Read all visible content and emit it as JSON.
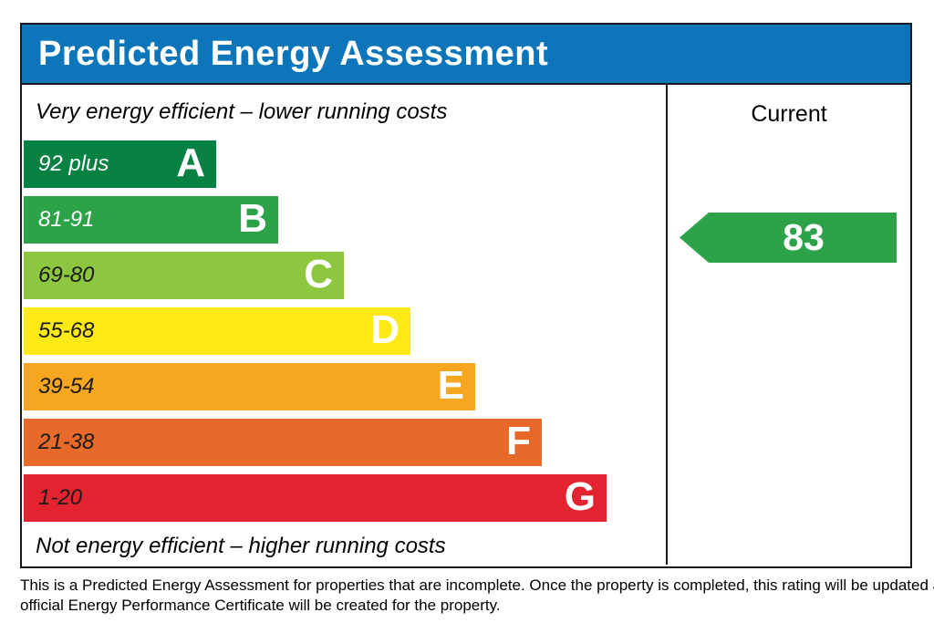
{
  "title": "Predicted Energy Assessment",
  "colors": {
    "header_blue": "#0d76ba",
    "border_black": "#1a1a1a",
    "arrow_green": "#2ca349"
  },
  "scale": {
    "top_note": "Very energy efficient – lower running costs",
    "bottom_note": "Not energy efficient – higher running costs",
    "bands": [
      {
        "letter": "A",
        "range": "92 plus",
        "color": "#068142",
        "range_color": "#ffffff",
        "width_px": "211px"
      },
      {
        "letter": "B",
        "range": "81-91",
        "color": "#2ca349",
        "range_color": "#ffffff",
        "width_px": "279px"
      },
      {
        "letter": "C",
        "range": "69-80",
        "color": "#8dc63f",
        "range_color": "#1a1a1a",
        "width_px": "351px"
      },
      {
        "letter": "D",
        "range": "55-68",
        "color": "#fce915",
        "range_color": "#1a1a1a",
        "width_px": "424px"
      },
      {
        "letter": "E",
        "range": "39-54",
        "color": "#f6a71f",
        "range_color": "#1a1a1a",
        "width_px": "495px"
      },
      {
        "letter": "F",
        "range": "21-38",
        "color": "#e86a2a",
        "range_color": "#1a1a1a",
        "width_px": "568px"
      },
      {
        "letter": "G",
        "range": "1-20",
        "color": "#e32430",
        "range_color": "#1a1a1a",
        "width_px": "639px"
      }
    ]
  },
  "current": {
    "header": "Current",
    "value": "83",
    "band": "B",
    "arrow_color": "#2ca349"
  },
  "footer": {
    "line1": "This is a Predicted Energy Assessment for properties that are incomplete. Once the property is completed, this rating will be updated and an",
    "line2": "official Energy Performance Certificate will be created for the property."
  },
  "chart_data": {
    "type": "bar",
    "orientation": "horizontal",
    "title": "Predicted Energy Assessment",
    "categories": [
      "A",
      "B",
      "C",
      "D",
      "E",
      "F",
      "G"
    ],
    "band_ranges": [
      "92 plus",
      "81-91",
      "69-80",
      "55-68",
      "39-54",
      "21-38",
      "1-20"
    ],
    "band_colors": [
      "#068142",
      "#2ca349",
      "#8dc63f",
      "#fce915",
      "#f6a71f",
      "#e86a2a",
      "#e32430"
    ],
    "bar_relative_lengths": [
      211,
      279,
      351,
      424,
      495,
      568,
      639
    ],
    "series": [
      {
        "name": "Current",
        "value": 83,
        "band": "B",
        "marker": "left-pointing arrow"
      }
    ],
    "annotations": [
      "Very energy efficient – lower running costs",
      "Not energy efficient – higher running costs"
    ],
    "legend_position": "right column header",
    "grid": false
  }
}
